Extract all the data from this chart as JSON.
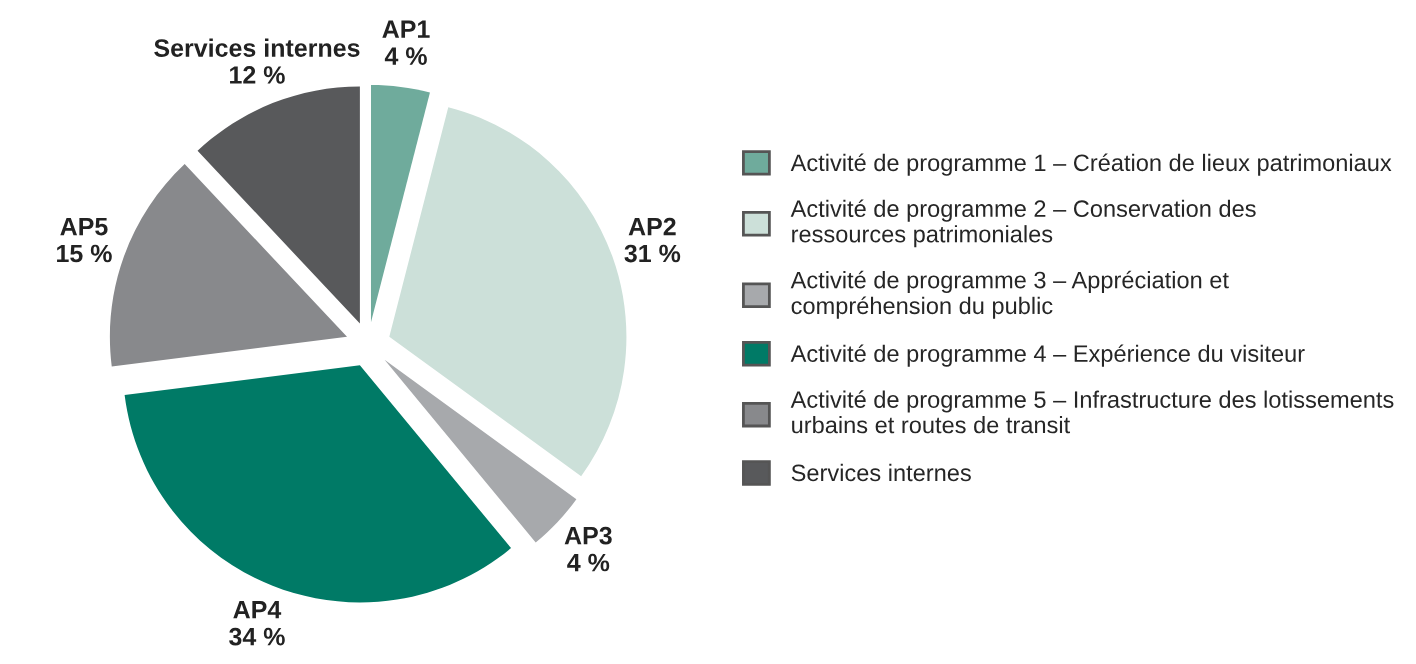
{
  "chart_data": {
    "type": "pie",
    "categories": [
      "Activité de programme 1 – Création de lieux patrimoniaux",
      "Activité de programme 2 – Conservation des\nressources patrimoniales",
      "Activité de programme 3 – Appréciation et\ncompréhension du public",
      "Activité de programme 4 – Expérience du visiteur",
      "Activité de programme 5 – Infrastructure des lotissements\nurbains et routes de transit",
      "Services internes"
    ],
    "values": [
      4,
      31,
      4,
      34,
      15,
      12
    ],
    "value_labels": [
      "AP1\n4 %",
      "AP2\n31 %",
      "AP3\n4 %",
      "AP4\n34 %",
      "AP5\n15 %",
      "Services internes\n12 %"
    ],
    "colors": [
      "#6fab9c",
      "#cce0d9",
      "#a7a9ac",
      "#007a66",
      "#88898c",
      "#58595b"
    ],
    "legend": "right"
  }
}
